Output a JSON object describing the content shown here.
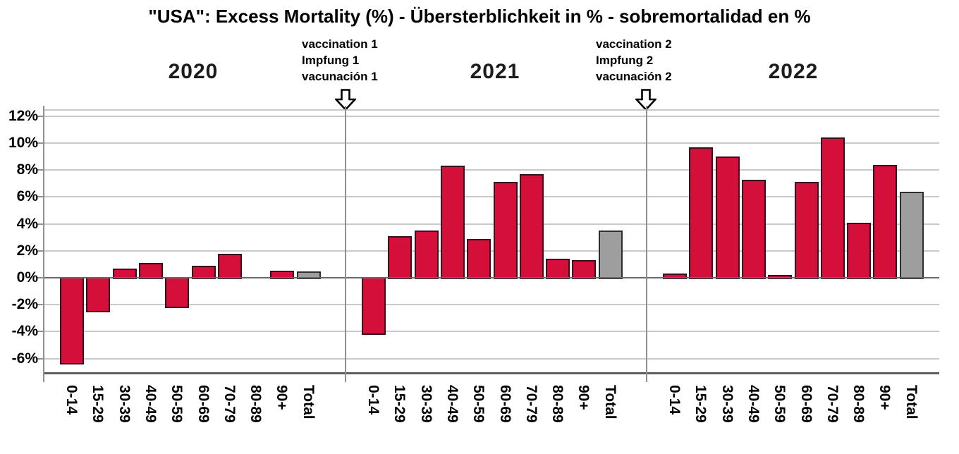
{
  "title": "\"USA\": Excess Mortality (%) - Übersterblichkeit in % - sobremortalidad en %",
  "annotations": [
    {
      "lines": [
        "vaccination 1",
        "Impfung 1",
        "vacunación 1"
      ],
      "arrow": "down-arrow"
    },
    {
      "lines": [
        "vaccination 2",
        "Impfung 2",
        "vacunación 2"
      ],
      "arrow": "down-arrow"
    }
  ],
  "colors": {
    "bar_red": "#d40f3a",
    "bar_red_border": "#3a0e1c",
    "bar_total_gray": "#9e9e9e",
    "bar_total_border": "#2e2e2e",
    "gridline": "#c9c9c9",
    "zero_line": "#6a6a6a",
    "bottom_axis": "#5d5d5d",
    "spine": "#909090",
    "text": "#000000"
  },
  "chart_data": {
    "type": "bar",
    "layout": "3 year facets side-by-side, shared y-axis, grid on, no legend",
    "categories": [
      "0-14",
      "15-29",
      "30-39",
      "40-49",
      "50-59",
      "60-69",
      "70-79",
      "80-89",
      "90+",
      "Total"
    ],
    "series": [
      {
        "name": "2020",
        "values": [
          -6.4,
          -2.5,
          0.7,
          1.1,
          -2.2,
          0.9,
          1.8,
          0.0,
          0.5,
          0.45
        ]
      },
      {
        "name": "2021",
        "values": [
          -4.2,
          3.1,
          3.5,
          8.3,
          2.9,
          7.1,
          7.7,
          1.4,
          1.3,
          3.5
        ]
      },
      {
        "name": "2022",
        "values": [
          0.3,
          9.7,
          9.0,
          7.3,
          0.2,
          7.1,
          10.4,
          4.1,
          8.4,
          6.4
        ]
      }
    ],
    "title": "\"USA\": Excess Mortality (%) - Übersterblichkeit in % - sobremortalidad en %",
    "xlabel": "",
    "ylabel": "",
    "ylim": [
      -7.1,
      12.5
    ],
    "yticks": [
      12,
      10,
      8,
      6,
      4,
      2,
      0,
      -2,
      -4,
      -6
    ],
    "ytick_suffix": "%",
    "total_category_color": "gray",
    "age_category_color": "red"
  }
}
